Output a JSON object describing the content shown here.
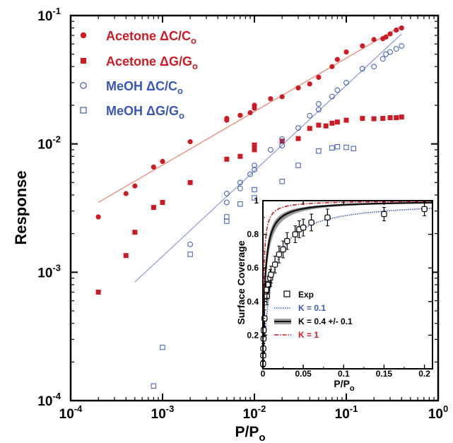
{
  "chart_data": [
    {
      "type": "scatter",
      "xscale": "log",
      "yscale": "log",
      "xlim": [
        0.0001,
        1
      ],
      "ylim": [
        0.0001,
        0.1
      ],
      "xlabel": "P/P",
      "xlabel_sub": "o",
      "ylabel": "Response",
      "grid": false,
      "legend_position": "top-left",
      "x_ticks": [
        {
          "value": 0.0001,
          "base": "10",
          "exp": "-4"
        },
        {
          "value": 0.001,
          "base": "10",
          "exp": "-3"
        },
        {
          "value": 0.01,
          "base": "10",
          "exp": "-2"
        },
        {
          "value": 0.1,
          "base": "10",
          "exp": "-1"
        },
        {
          "value": 1,
          "base": "10",
          "exp": "0"
        }
      ],
      "y_ticks": [
        {
          "value": 0.0001,
          "base": "10",
          "exp": "-4"
        },
        {
          "value": 0.001,
          "base": "10",
          "exp": "-3"
        },
        {
          "value": 0.01,
          "base": "10",
          "exp": "-2"
        },
        {
          "value": 0.1,
          "base": "10",
          "exp": "-1"
        }
      ],
      "series": [
        {
          "name": "Acetone ΔC/C",
          "name_sub": "o",
          "marker": "filled-circle",
          "color": "#cc1b24",
          "points": [
            [
              0.0002,
              0.0027
            ],
            [
              0.0004,
              0.0041
            ],
            [
              0.0005,
              0.0047
            ],
            [
              0.0008,
              0.0066
            ],
            [
              0.001,
              0.0073
            ],
            [
              0.002,
              0.0104
            ],
            [
              0.005,
              0.0153
            ],
            [
              0.005,
              0.0158
            ],
            [
              0.007,
              0.0167
            ],
            [
              0.009,
              0.0175
            ],
            [
              0.01,
              0.019
            ],
            [
              0.01,
              0.02
            ],
            [
              0.015,
              0.0225
            ],
            [
              0.02,
              0.0233
            ],
            [
              0.03,
              0.0273
            ],
            [
              0.04,
              0.0293
            ],
            [
              0.05,
              0.033
            ],
            [
              0.07,
              0.04
            ],
            [
              0.08,
              0.0455
            ],
            [
              0.1,
              0.052
            ],
            [
              0.15,
              0.058
            ],
            [
              0.2,
              0.065
            ],
            [
              0.25,
              0.066
            ],
            [
              0.27,
              0.068
            ],
            [
              0.3,
              0.072
            ],
            [
              0.35,
              0.077
            ],
            [
              0.4,
              0.08
            ]
          ]
        },
        {
          "name": "Acetone ΔG/G",
          "name_sub": "o",
          "marker": "filled-square",
          "color": "#cc1b24",
          "points": [
            [
              0.0002,
              0.0007
            ],
            [
              0.0004,
              0.00135
            ],
            [
              0.0005,
              0.00205
            ],
            [
              0.0008,
              0.0032
            ],
            [
              0.001,
              0.0035
            ],
            [
              0.002,
              0.005
            ],
            [
              0.005,
              0.0076
            ],
            [
              0.007,
              0.008
            ],
            [
              0.01,
              0.009
            ],
            [
              0.01,
              0.0098
            ],
            [
              0.02,
              0.0105
            ],
            [
              0.03,
              0.011
            ],
            [
              0.04,
              0.0132
            ],
            [
              0.05,
              0.014
            ],
            [
              0.06,
              0.0138
            ],
            [
              0.07,
              0.0145
            ],
            [
              0.08,
              0.0148
            ],
            [
              0.1,
              0.0153
            ],
            [
              0.15,
              0.0158
            ],
            [
              0.2,
              0.0157
            ],
            [
              0.25,
              0.0158
            ],
            [
              0.3,
              0.016
            ],
            [
              0.35,
              0.016
            ],
            [
              0.4,
              0.0162
            ]
          ]
        },
        {
          "name": "MeOH ΔC/C",
          "name_sub": "o",
          "marker": "open-circle",
          "color": "#3a57b8",
          "points": [
            [
              0.002,
              0.00165
            ],
            [
              0.005,
              0.0035
            ],
            [
              0.005,
              0.0041
            ],
            [
              0.007,
              0.0045
            ],
            [
              0.007,
              0.005
            ],
            [
              0.009,
              0.0058
            ],
            [
              0.01,
              0.0063
            ],
            [
              0.01,
              0.0068
            ],
            [
              0.015,
              0.009
            ],
            [
              0.02,
              0.0097
            ],
            [
              0.02,
              0.0109
            ],
            [
              0.03,
              0.0133
            ],
            [
              0.04,
              0.0166
            ],
            [
              0.05,
              0.0185
            ],
            [
              0.05,
              0.0205
            ],
            [
              0.07,
              0.0234
            ],
            [
              0.08,
              0.0262
            ],
            [
              0.1,
              0.03
            ],
            [
              0.15,
              0.0385
            ],
            [
              0.2,
              0.04
            ],
            [
              0.25,
              0.046
            ],
            [
              0.27,
              0.05
            ],
            [
              0.3,
              0.052
            ],
            [
              0.35,
              0.055
            ],
            [
              0.4,
              0.058
            ]
          ]
        },
        {
          "name": "MeOH ΔG/G",
          "name_sub": "o",
          "marker": "open-square",
          "color": "#3a57b8",
          "points": [
            [
              0.0008,
              0.00013
            ],
            [
              0.001,
              0.00026
            ],
            [
              0.002,
              0.00138
            ],
            [
              0.005,
              0.0025
            ],
            [
              0.005,
              0.0027
            ],
            [
              0.007,
              0.0034
            ],
            [
              0.01,
              0.0038
            ],
            [
              0.01,
              0.0044
            ],
            [
              0.02,
              0.0051
            ],
            [
              0.03,
              0.0068
            ],
            [
              0.05,
              0.0088
            ],
            [
              0.07,
              0.0093
            ],
            [
              0.08,
              0.0095
            ],
            [
              0.1,
              0.0094
            ],
            [
              0.12,
              0.0092
            ]
          ]
        }
      ],
      "fit_lines": [
        {
          "color": "#f0806f",
          "from": [
            0.0002,
            0.0035
          ],
          "to": [
            0.4,
            0.083
          ]
        },
        {
          "color": "#8a98dd",
          "from": [
            0.0005,
            0.00084
          ],
          "to": [
            0.4,
            0.072
          ]
        }
      ]
    },
    {
      "type": "line",
      "xlabel": "P/P",
      "xlabel_sub": "o",
      "ylabel": "Surface Coverage",
      "xlim": [
        0,
        0.21
      ],
      "ylim": [
        0,
        1
      ],
      "x_ticks": [
        "0",
        "0.05",
        "0.1",
        "0.15",
        "0.2"
      ],
      "x_tick_values": [
        0,
        0.05,
        0.1,
        0.15,
        0.2
      ],
      "y_ticks": [
        "0.2",
        "0.4",
        "0.6",
        "0.8",
        "1"
      ],
      "y_tick_values": [
        0.2,
        0.4,
        0.6,
        0.8,
        1
      ],
      "legend_position": "center-left",
      "legend": [
        {
          "label": "Exp",
          "style": "open-square"
        },
        {
          "label": "K = 0.1",
          "style": "blue-dotted",
          "color": "#3a57b8"
        },
        {
          "label": "K = 0.4 +/- 0.1",
          "style": "black-band",
          "color": "#111111"
        },
        {
          "label": "K = 1",
          "style": "red-dashdot",
          "color": "#cc1b24"
        }
      ],
      "series": [
        {
          "label_ref": "K = 0.1",
          "K": 0.1,
          "color": "#3a57b8"
        },
        {
          "label_ref": "K = 0.4 +/- 0.1",
          "K": 0.4,
          "K_low": 0.3,
          "K_high": 0.5,
          "color": "#111111"
        },
        {
          "label_ref": "K = 1",
          "K": 1,
          "color": "#cc1b24"
        }
      ],
      "exp_points": [
        {
          "x": 0.0002,
          "y": 0.03,
          "err": 0.02
        },
        {
          "x": 0.0004,
          "y": 0.08,
          "err": 0.03
        },
        {
          "x": 0.0005,
          "y": 0.12,
          "err": 0.03
        },
        {
          "x": 0.0008,
          "y": 0.18,
          "err": 0.03
        },
        {
          "x": 0.001,
          "y": 0.23,
          "err": 0.04
        },
        {
          "x": 0.002,
          "y": 0.3,
          "err": 0.05
        },
        {
          "x": 0.005,
          "y": 0.43,
          "err": 0.05
        },
        {
          "x": 0.005,
          "y": 0.47,
          "err": 0.05
        },
        {
          "x": 0.007,
          "y": 0.5,
          "err": 0.05
        },
        {
          "x": 0.009,
          "y": 0.54,
          "err": 0.05
        },
        {
          "x": 0.01,
          "y": 0.56,
          "err": 0.05
        },
        {
          "x": 0.015,
          "y": 0.62,
          "err": 0.05
        },
        {
          "x": 0.02,
          "y": 0.68,
          "err": 0.05
        },
        {
          "x": 0.025,
          "y": 0.71,
          "err": 0.05
        },
        {
          "x": 0.03,
          "y": 0.76,
          "err": 0.05
        },
        {
          "x": 0.04,
          "y": 0.8,
          "err": 0.05
        },
        {
          "x": 0.045,
          "y": 0.83,
          "err": 0.05
        },
        {
          "x": 0.05,
          "y": 0.84,
          "err": 0.05
        },
        {
          "x": 0.06,
          "y": 0.87,
          "err": 0.05
        },
        {
          "x": 0.08,
          "y": 0.9,
          "err": 0.05
        },
        {
          "x": 0.15,
          "y": 0.92,
          "err": 0.04
        },
        {
          "x": 0.2,
          "y": 0.95,
          "err": 0.04
        }
      ]
    }
  ]
}
